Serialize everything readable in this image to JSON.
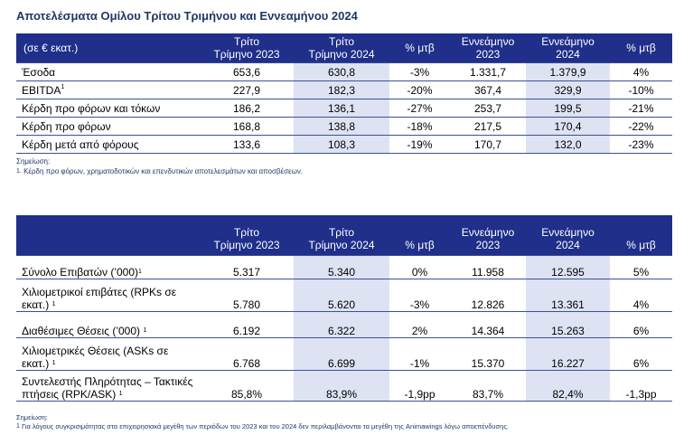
{
  "title": "Αποτελέσματα Ομίλου Τρίτου Τριμήνου και Εννεαμήνου 2024",
  "table1": {
    "header": {
      "label": "(σε € εκατ.)",
      "q3_2023": [
        "Τρίτο",
        "Τρίμηνο 2023"
      ],
      "q3_2024": [
        "Τρίτο",
        "Τρίμηνο 2024"
      ],
      "pct1": "% μτβ",
      "nm_2023": [
        "Εννεάμηνο",
        "2023"
      ],
      "nm_2024": [
        "Εννεάμηνο",
        "2024"
      ],
      "pct2": "% μτβ"
    },
    "rows": [
      {
        "label": "Έσοδα",
        "sup": "",
        "q3_2023": "653,6",
        "q3_2024": "630,8",
        "pct1": "-3%",
        "nm_2023": "1.331,7",
        "nm_2024": "1.379,9",
        "pct2": "4%"
      },
      {
        "label": "EBITDA",
        "sup": "1",
        "q3_2023": "227,9",
        "q3_2024": "182,3",
        "pct1": "-20%",
        "nm_2023": "367,4",
        "nm_2024": "329,9",
        "pct2": "-10%"
      },
      {
        "label": "Κέρδη προ φόρων και τόκων",
        "sup": "",
        "q3_2023": "186,2",
        "q3_2024": "136,1",
        "pct1": "-27%",
        "nm_2023": "253,7",
        "nm_2024": "199,5",
        "pct2": "-21%"
      },
      {
        "label": "Κέρδη προ φόρων",
        "sup": "",
        "q3_2023": "168,8",
        "q3_2024": "138,8",
        "pct1": "-18%",
        "nm_2023": "217,5",
        "nm_2024": "170,4",
        "pct2": "-22%"
      },
      {
        "label": "Κέρδη μετά από φόρους",
        "sup": "",
        "q3_2023": "133,6",
        "q3_2024": "108,3",
        "pct1": "-19%",
        "nm_2023": "170,7",
        "nm_2024": "132,0",
        "pct2": "-23%"
      }
    ],
    "note_title": "Σημείωση:",
    "note_sup": "1.",
    "note_text": "Κέρδη προ φόρων, χρηματοδοτικών και επενδυτικών αποτελεσμάτων και αποσβέσεων."
  },
  "table2": {
    "header": {
      "label": "",
      "q3_2023": [
        "Τρίτο",
        "Τρίμηνο 2023"
      ],
      "q3_2024": [
        "Τρίτο",
        "Τρίμηνο 2024"
      ],
      "pct1": "% μτβ",
      "nm_2023": [
        "Εννεάμηνο",
        "2023"
      ],
      "nm_2024": [
        "Εννεάμηνο",
        "2024"
      ],
      "pct2": "% μτβ"
    },
    "rows": [
      {
        "label": "Σύνολο Επιβατών (’000)",
        "sup": "1",
        "q3_2023": "5.317",
        "q3_2024": "5.340",
        "pct1": "0%",
        "nm_2023": "11.958",
        "nm_2024": "12.595",
        "pct2": "5%"
      },
      {
        "label": "Χιλιομετρικοί επιβάτες (RPKs σε εκατ.)",
        "sup": "1",
        "q3_2023": "5.780",
        "q3_2024": "5.620",
        "pct1": "-3%",
        "nm_2023": "12.826",
        "nm_2024": "13.361",
        "pct2": "4%"
      },
      {
        "label": "Διαθέσιμες Θέσεις (’000)",
        "sup": "1",
        "q3_2023": "6.192",
        "q3_2024": "6.322",
        "pct1": "2%",
        "nm_2023": "14.364",
        "nm_2024": "15.263",
        "pct2": "6%"
      },
      {
        "label": "Χιλιομετρικές Θέσεις (ASKs σε εκατ.)",
        "sup": "1",
        "q3_2023": "6.768",
        "q3_2024": "6.699",
        "pct1": "-1%",
        "nm_2023": "15.370",
        "nm_2024": "16.227",
        "pct2": "6%"
      },
      {
        "label": "Συντελεστής Πληρότητας – Τακτικές πτήσεις (RPK/ASK)",
        "sup": "1",
        "q3_2023": "85,8%",
        "q3_2024": "83,9%",
        "pct1": "-1,9pp",
        "nm_2023": "83,7%",
        "nm_2024": "82,4%",
        "pct2": "-1,3pp"
      }
    ],
    "note_title": "Σημείωση:",
    "note_sup": "1",
    "note_text": "Για λόγους συγκρισιμότητας στα επιχειρησιακά μεγέθη των περιόδων του 2023 και του 2024 δεν περιλαμβάνονται τα μεγέθη της Animawings λόγω αποεπένδυσης."
  },
  "colors": {
    "header_bg": "#1f2f8a",
    "highlight": "#dde3f2",
    "title": "#1f3864"
  }
}
